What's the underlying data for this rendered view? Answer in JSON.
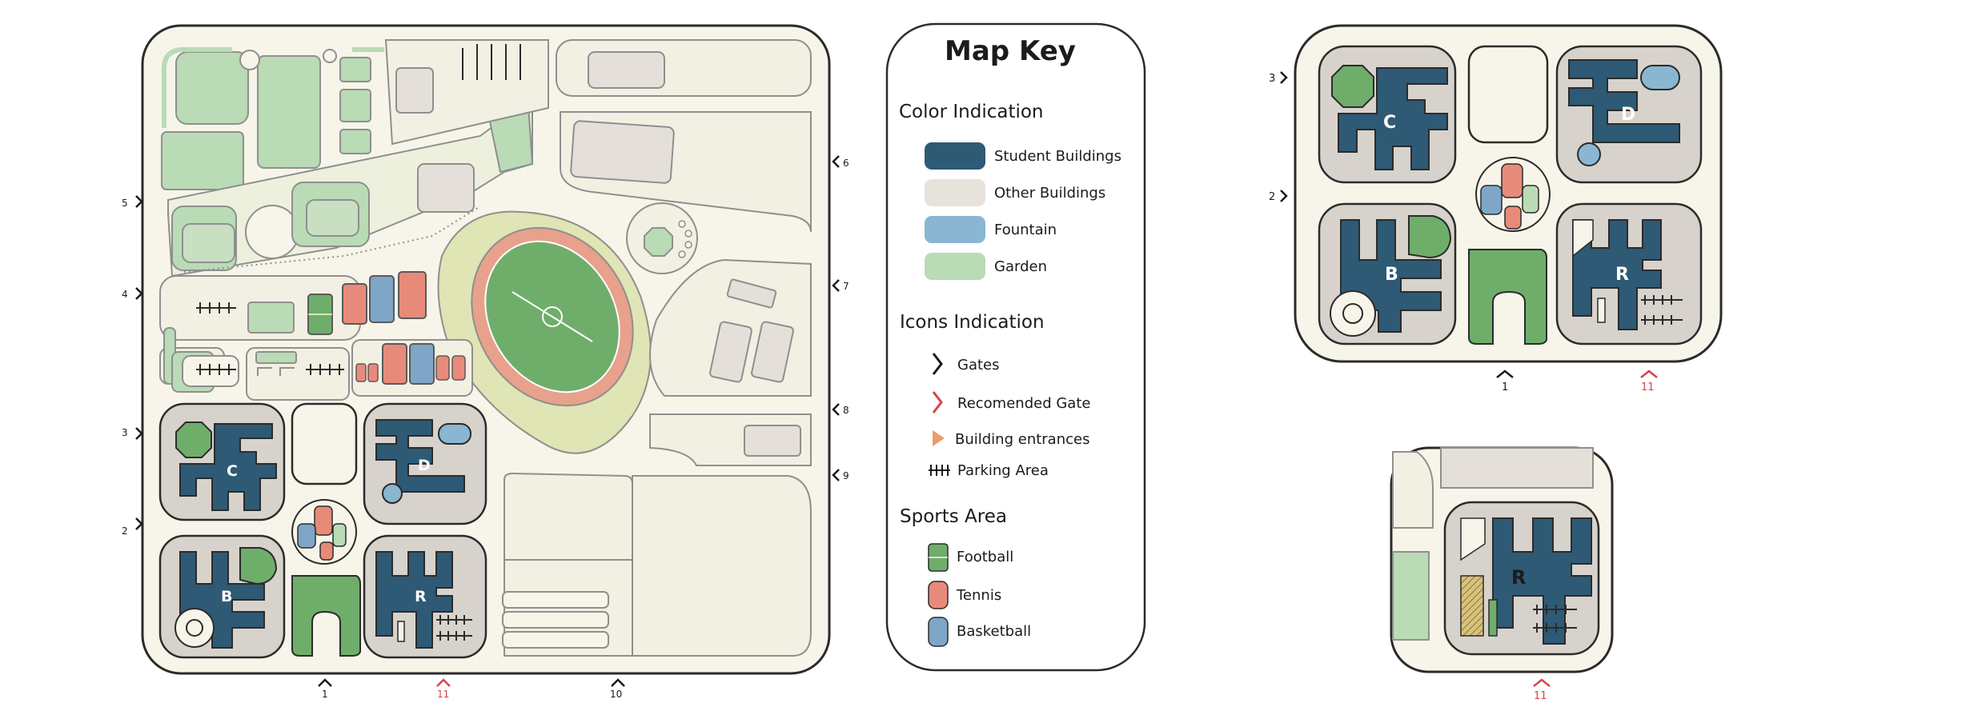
{
  "legend": {
    "title": "Map Key",
    "color_heading": "Color Indication",
    "colors": [
      {
        "label": "Student Buildings",
        "color": "#2e5a75"
      },
      {
        "label": "Other Buildings",
        "color": "#e7e2dc"
      },
      {
        "label": "Fountain",
        "color": "#8ab6d2"
      },
      {
        "label": "Garden",
        "color": "#b9dbb5"
      }
    ],
    "icons_heading": "Icons Indication",
    "icons": [
      {
        "label": "Gates",
        "icon": "gate-chevron-icon",
        "color": "#1b1b1b"
      },
      {
        "label": "Recomended Gate",
        "icon": "recommended-gate-icon",
        "color": "#d9434a"
      },
      {
        "label": "Building entrances",
        "icon": "entrance-triangle-icon",
        "color": "#ef9a6a"
      },
      {
        "label": "Parking Area",
        "icon": "parking-icon",
        "color": "#1b1b1b"
      }
    ],
    "sports_heading": "Sports Area",
    "sports": [
      {
        "label": "Football",
        "icon": "football-field-icon",
        "color": "#6fae6a"
      },
      {
        "label": "Tennis",
        "icon": "tennis-court-icon",
        "color": "#e88a7a"
      },
      {
        "label": "Basketball",
        "icon": "basketball-court-icon",
        "color": "#7fa6c6"
      }
    ]
  },
  "main_map": {
    "gate_labels": {
      "g1": "1",
      "g2": "2",
      "g3": "3",
      "g4": "4",
      "g5": "5",
      "g6": "6",
      "g7": "7",
      "g8": "8",
      "g9": "9",
      "g10": "10",
      "g11": "11"
    },
    "building_labels": {
      "c": "C",
      "d": "D",
      "b": "B",
      "r": "R"
    }
  },
  "zoom_map_1": {
    "gate_labels": {
      "g1": "1",
      "g2": "2",
      "g3": "3",
      "g11": "11"
    },
    "building_labels": {
      "c": "C",
      "d": "D",
      "b": "B",
      "r": "R"
    }
  },
  "zoom_map_2": {
    "gate_labels": {
      "g11": "11"
    },
    "building_labels": {
      "r": "R"
    }
  },
  "colors": {
    "outline": "#2b2b2b",
    "ground": "#f7f5e9",
    "path": "#efece0",
    "road": "#e7e4d6",
    "building_pad": "#d7d2cc",
    "student_building": "#2e5a75",
    "other_building": "#e4e0d9",
    "garden": "#b9dbb5",
    "garden_dark": "#6fae6a",
    "fountain": "#8ab6d2",
    "track": "#e8a18a",
    "stadium_grass": "#dfe5b4",
    "gate": "#1b1b1b",
    "gate_recommended": "#d9434a",
    "entrance": "#ef9a6a"
  }
}
